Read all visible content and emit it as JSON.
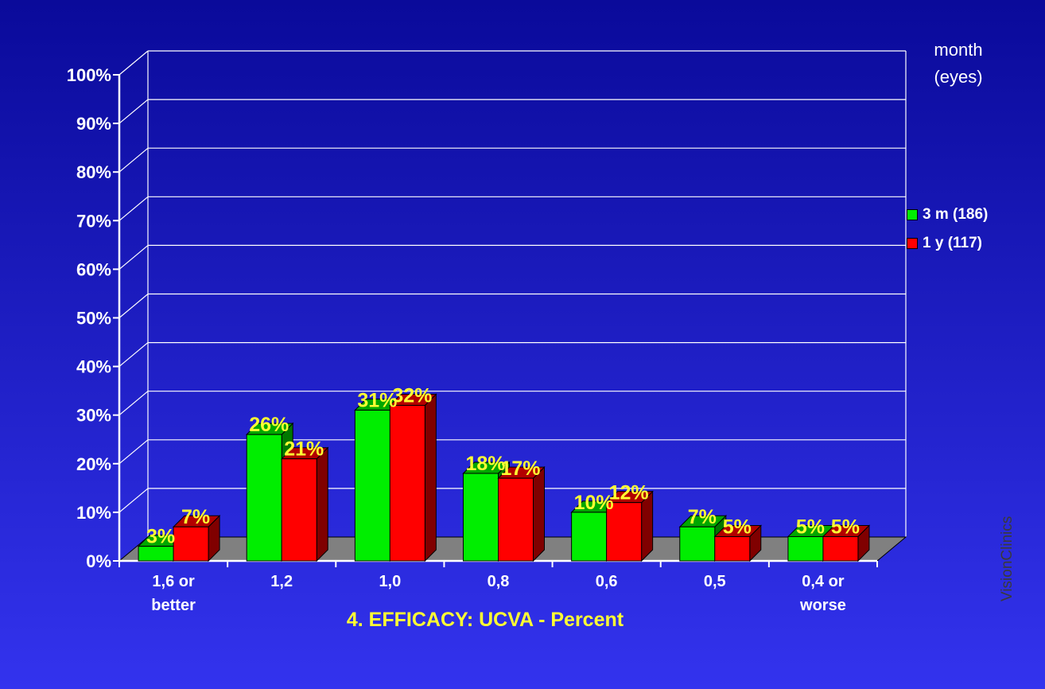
{
  "chart_data": {
    "type": "bar",
    "title": "4. EFFICACY: UCVA - Percent",
    "categories": [
      [
        "1,6 or",
        "better"
      ],
      [
        "1,2"
      ],
      [
        "1,0"
      ],
      [
        "0,8"
      ],
      [
        "0,6"
      ],
      [
        "0,5"
      ],
      [
        "0,4 or",
        "worse"
      ]
    ],
    "series": [
      {
        "name": "3 m (186)",
        "values": [
          3,
          26,
          31,
          18,
          10,
          7,
          5
        ],
        "labels": [
          "3%",
          "26%",
          "31%",
          "18%",
          "10%",
          "7%",
          "5%"
        ],
        "color": "#00ee00"
      },
      {
        "name": "1 y (117)",
        "values": [
          7,
          21,
          32,
          17,
          12,
          5,
          5
        ],
        "labels": [
          "7%",
          "21%",
          "32%",
          "17%",
          "12%",
          "5%",
          "5%"
        ],
        "color": "#ff0000"
      }
    ],
    "y_ticks": [
      "0%",
      "10%",
      "20%",
      "30%",
      "40%",
      "50%",
      "60%",
      "70%",
      "80%",
      "90%",
      "100%"
    ],
    "ylim": [
      0,
      100
    ],
    "grid": true,
    "legend_position": "right",
    "legend_title": [
      "month",
      "(eyes)"
    ]
  },
  "watermark": "VisionClinics",
  "colors": {
    "background_top": "#0a0a9a",
    "background_bottom": "#3333ee",
    "floor": "#808080",
    "data_label": "#ffff33",
    "title": "#ffff33"
  }
}
